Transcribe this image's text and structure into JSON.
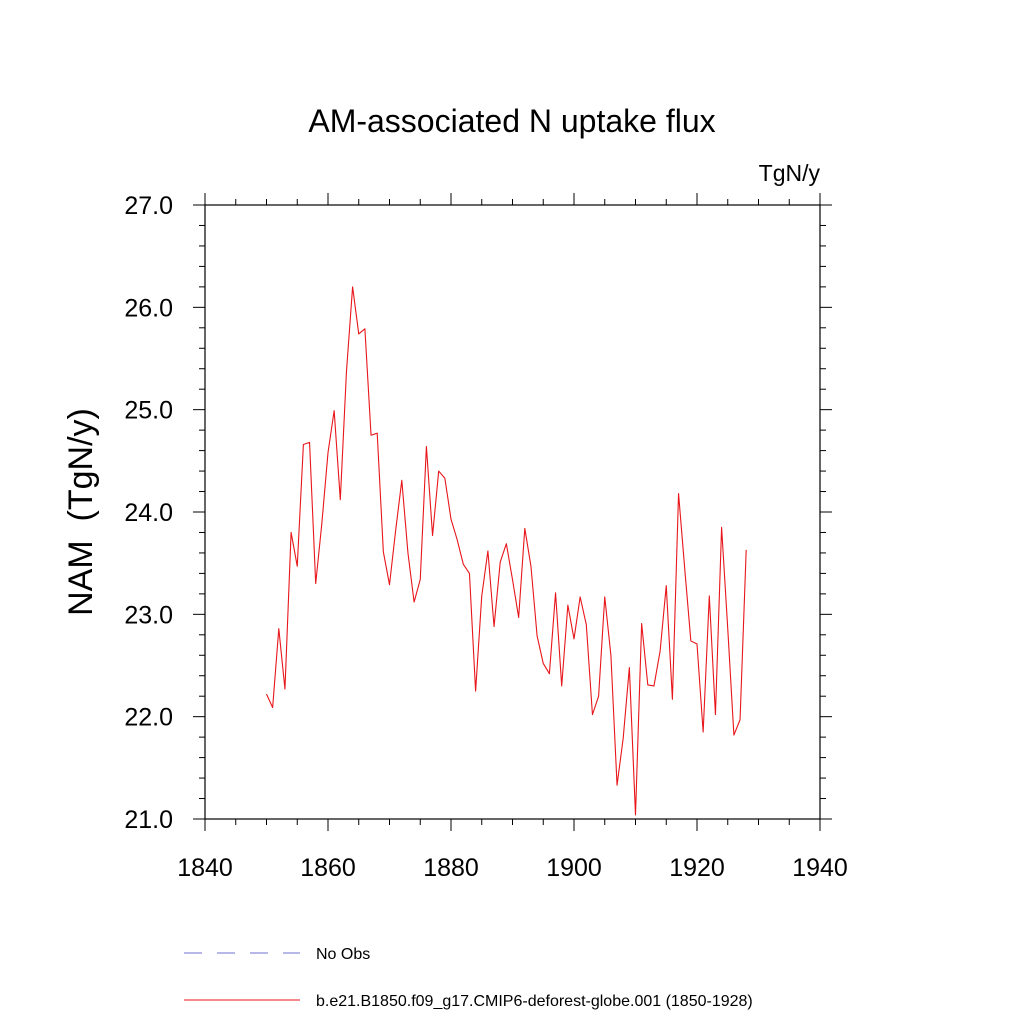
{
  "chart_data": {
    "type": "line",
    "title": "AM-associated N uptake flux",
    "units_label": "TgN/y",
    "ylabel": "NAM  (TgN/y)",
    "xlabel": "",
    "xlim": [
      1840,
      1940
    ],
    "ylim": [
      21.0,
      27.0
    ],
    "x_ticks": [
      "1840",
      "1860",
      "1880",
      "1900",
      "1920",
      "1940"
    ],
    "y_ticks": [
      "21.0",
      "22.0",
      "23.0",
      "24.0",
      "25.0",
      "26.0",
      "27.0"
    ],
    "grid": false,
    "legend_position": "bottom",
    "series": [
      {
        "name": "No Obs",
        "color": "#6f6fd0",
        "style": "dashed",
        "x": [],
        "values": []
      },
      {
        "name": "b.e21.B1850.f09_g17.CMIP6-deforest-globe.001 (1850-1928)",
        "color": "#e8161a",
        "style": "solid",
        "x": [
          1850,
          1851,
          1852,
          1853,
          1854,
          1855,
          1856,
          1857,
          1858,
          1859,
          1860,
          1861,
          1862,
          1863,
          1864,
          1865,
          1866,
          1867,
          1868,
          1869,
          1870,
          1871,
          1872,
          1873,
          1874,
          1875,
          1876,
          1877,
          1878,
          1879,
          1880,
          1881,
          1882,
          1883,
          1884,
          1885,
          1886,
          1887,
          1888,
          1889,
          1890,
          1891,
          1892,
          1893,
          1894,
          1895,
          1896,
          1897,
          1898,
          1899,
          1900,
          1901,
          1902,
          1903,
          1904,
          1905,
          1906,
          1907,
          1908,
          1909,
          1910,
          1911,
          1912,
          1913,
          1914,
          1915,
          1916,
          1917,
          1918,
          1919,
          1920,
          1921,
          1922,
          1923,
          1924,
          1925,
          1926,
          1927,
          1928
        ],
        "values": [
          22.22,
          22.09,
          22.86,
          22.27,
          23.8,
          23.47,
          24.66,
          24.68,
          23.3,
          23.89,
          24.58,
          24.99,
          24.12,
          25.37,
          26.2,
          25.74,
          25.79,
          24.75,
          24.77,
          23.61,
          23.29,
          23.82,
          24.31,
          23.6,
          23.12,
          23.34,
          24.64,
          23.77,
          24.4,
          24.33,
          23.93,
          23.73,
          23.49,
          23.4,
          22.25,
          23.18,
          23.62,
          22.88,
          23.51,
          23.69,
          23.34,
          22.97,
          23.84,
          23.47,
          22.79,
          22.52,
          22.42,
          23.21,
          22.3,
          23.09,
          22.76,
          23.17,
          22.9,
          22.02,
          22.2,
          23.17,
          22.6,
          21.33,
          21.79,
          22.48,
          21.04,
          22.91,
          22.31,
          22.3,
          22.64,
          23.28,
          22.17,
          24.18,
          23.45,
          22.74,
          22.71,
          21.85,
          23.18,
          22.02,
          23.85,
          22.86,
          21.82,
          21.97,
          23.63
        ]
      }
    ]
  }
}
